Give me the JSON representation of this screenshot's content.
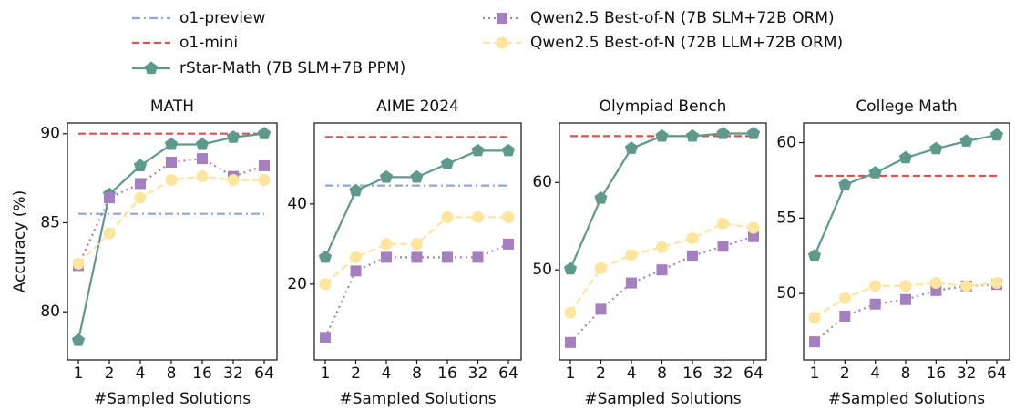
{
  "chart_data": [
    {
      "type": "line",
      "title": "MATH",
      "xlabel": "#Sampled Solutions",
      "ylabel": "Accuracy (%)",
      "categories": [
        "1",
        "2",
        "4",
        "8",
        "16",
        "32",
        "64"
      ],
      "ylim": [
        77.3,
        90.6
      ],
      "yticks": [
        80,
        85,
        90
      ],
      "series": [
        {
          "name": "o1-preview",
          "color": "#8fa9d1",
          "linestyle": "dashdot",
          "marker": "none",
          "values": [
            85.5,
            85.5,
            85.5,
            85.5,
            85.5,
            85.5,
            85.5
          ]
        },
        {
          "name": "o1-mini",
          "color": "#d9534f",
          "linestyle": "dashed",
          "marker": "none",
          "values": [
            90.0,
            90.0,
            90.0,
            90.0,
            90.0,
            90.0,
            90.0
          ]
        },
        {
          "name": "rStar-Math (7B SLM+7B PPM)",
          "color": "#5e9a8c",
          "linestyle": "solid",
          "marker": "pentagon",
          "values": [
            78.4,
            86.6,
            88.2,
            89.4,
            89.4,
            89.8,
            90.0
          ]
        },
        {
          "name": "Qwen2.5 Best-of-N (7B SLM+72B ORM)",
          "color": "#a57fc2",
          "linestyle": "dotted",
          "marker": "square",
          "values": [
            82.6,
            86.4,
            87.2,
            88.4,
            88.6,
            87.6,
            88.2
          ]
        },
        {
          "name": "Qwen2.5 Best-of-N (72B LLM+72B ORM)",
          "color": "#fde59c",
          "linestyle": "dashed",
          "marker": "circle",
          "values": [
            82.7,
            84.4,
            86.4,
            87.4,
            87.6,
            87.4,
            87.4
          ]
        }
      ]
    },
    {
      "type": "line",
      "title": "AIME 2024",
      "xlabel": "#Sampled Solutions",
      "categories": [
        "1",
        "2",
        "4",
        "8",
        "16",
        "32",
        "64"
      ],
      "ylim": [
        1.1,
        60.2
      ],
      "yticks": [
        20,
        40
      ],
      "series": [
        {
          "color": "#8fa9d1",
          "linestyle": "dashdot",
          "marker": "none",
          "values": [
            44.6,
            44.6,
            44.6,
            44.6,
            44.6,
            44.6,
            44.6
          ]
        },
        {
          "color": "#d9534f",
          "linestyle": "dashed",
          "marker": "none",
          "values": [
            56.7,
            56.7,
            56.7,
            56.7,
            56.7,
            56.7,
            56.7
          ]
        },
        {
          "color": "#5e9a8c",
          "linestyle": "solid",
          "marker": "pentagon",
          "values": [
            26.7,
            43.3,
            46.7,
            46.7,
            50.0,
            53.3,
            53.3
          ]
        },
        {
          "color": "#a57fc2",
          "linestyle": "dotted",
          "marker": "square",
          "values": [
            6.7,
            23.3,
            26.7,
            26.7,
            26.7,
            26.7,
            30.0
          ]
        },
        {
          "color": "#fde59c",
          "linestyle": "dashed",
          "marker": "circle",
          "values": [
            20.0,
            26.7,
            30.0,
            30.0,
            36.7,
            36.7,
            36.7
          ]
        }
      ]
    },
    {
      "type": "line",
      "title": "Olympiad Bench",
      "xlabel": "#Sampled Solutions",
      "categories": [
        "1",
        "2",
        "4",
        "8",
        "16",
        "32",
        "64"
      ],
      "ylim": [
        39.7,
        66.8
      ],
      "yticks": [
        50,
        60
      ],
      "series": [
        {
          "color": "#d9534f",
          "linestyle": "dashed",
          "marker": "none",
          "values": [
            65.3,
            65.3,
            65.3,
            65.3,
            65.3,
            65.3,
            65.3
          ]
        },
        {
          "color": "#5e9a8c",
          "linestyle": "solid",
          "marker": "pentagon",
          "values": [
            50.1,
            58.2,
            63.9,
            65.3,
            65.3,
            65.6,
            65.6
          ]
        },
        {
          "color": "#a57fc2",
          "linestyle": "dotted",
          "marker": "square",
          "values": [
            41.7,
            45.5,
            48.5,
            50.0,
            51.6,
            52.7,
            53.8
          ]
        },
        {
          "color": "#fde59c",
          "linestyle": "dashed",
          "marker": "circle",
          "values": [
            45.1,
            50.2,
            51.7,
            52.6,
            53.6,
            55.3,
            54.8
          ]
        }
      ]
    },
    {
      "type": "line",
      "title": "College Math",
      "xlabel": "#Sampled Solutions",
      "categories": [
        "1",
        "2",
        "4",
        "8",
        "16",
        "32",
        "64"
      ],
      "ylim": [
        45.6,
        61.3
      ],
      "yticks": [
        50,
        55,
        60
      ],
      "series": [
        {
          "color": "#d9534f",
          "linestyle": "dashed",
          "marker": "none",
          "values": [
            57.8,
            57.8,
            57.8,
            57.8,
            57.8,
            57.8,
            57.8
          ]
        },
        {
          "color": "#5e9a8c",
          "linestyle": "solid",
          "marker": "pentagon",
          "values": [
            52.5,
            57.2,
            58.0,
            59.0,
            59.6,
            60.1,
            60.5
          ]
        },
        {
          "color": "#a57fc2",
          "linestyle": "dotted",
          "marker": "square",
          "values": [
            46.8,
            48.5,
            49.3,
            49.6,
            50.2,
            50.5,
            50.6
          ]
        },
        {
          "color": "#fde59c",
          "linestyle": "dashed",
          "marker": "circle",
          "values": [
            48.4,
            49.7,
            50.5,
            50.5,
            50.7,
            50.5,
            50.7
          ]
        }
      ]
    }
  ]
}
